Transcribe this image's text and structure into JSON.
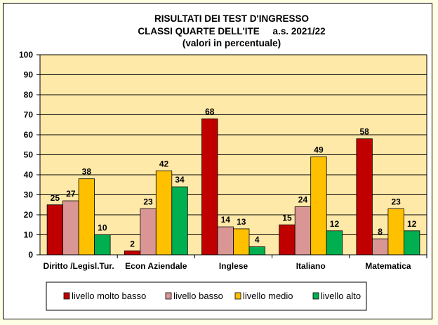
{
  "chart_data": {
    "type": "bar",
    "title_lines": [
      "RISULTATI DEI TEST D'INGRESSO",
      "CLASSI QUARTE DELL'ITE     a.s. 2021/22",
      "(valori in percentuale)"
    ],
    "categories": [
      "Diritto /Legisl.Tur.",
      "Econ Aziendale",
      "Inglese",
      "Italiano",
      "Matematica"
    ],
    "series": [
      {
        "name": "livello molto  basso",
        "color": "#C00000",
        "values": [
          25,
          2,
          68,
          15,
          58
        ]
      },
      {
        "name": "livello basso",
        "color": "#D99694",
        "values": [
          27,
          23,
          14,
          24,
          8
        ]
      },
      {
        "name": "livello medio",
        "color": "#FFC000",
        "values": [
          38,
          42,
          13,
          49,
          23
        ]
      },
      {
        "name": "livello alto",
        "color": "#00B050",
        "values": [
          10,
          34,
          4,
          12,
          12
        ]
      }
    ],
    "ylim": [
      0,
      100
    ],
    "yticks": [
      0,
      10,
      20,
      30,
      40,
      50,
      60,
      70,
      80,
      90,
      100
    ],
    "grid": true,
    "plot_background": "#FFE9A8",
    "legend": "bottom",
    "data_labels": true
  }
}
